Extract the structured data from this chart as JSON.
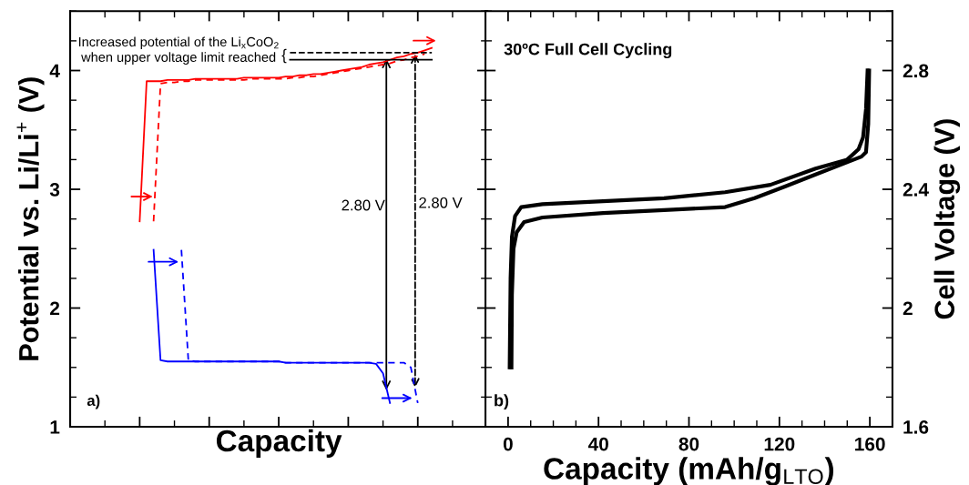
{
  "chart_data": [
    {
      "type": "line",
      "xlabel": "Capacity",
      "ylabel": "Potential vs. Li/Li$^{+}$ (V)",
      "categories": [
        null,
        null,
        null,
        null,
        null,
        null,
        null,
        null,
        null,
        null,
        null,
        null,
        null,
        null,
        null,
        null,
        null,
        null,
        null,
        null,
        null,
        null,
        null,
        null,
        null,
        null,
        null,
        null,
        null,
        null,
        null,
        null,
        null,
        null,
        null,
        null,
        null,
        null,
        null,
        null,
        null,
        null,
        null,
        null,
        null,
        null,
        null,
        null,
        null,
        null,
        null,
        null,
        null,
        null,
        null,
        null,
        null,
        null,
        null,
        null,
        null
      ],
      "ylim": [
        1,
        4.5
      ],
      "tick_labels": "y",
      "grid": false,
      "legend": false,
      "yticks": [
        1,
        {
          "value": 1.25,
          "label": null
        },
        {
          "value": 1.5,
          "label": null
        },
        {
          "value": 1.75,
          "label": null
        },
        2,
        {
          "value": 2.25,
          "label": null
        },
        {
          "value": 2.5,
          "label": null
        },
        {
          "value": 2.75,
          "label": null
        },
        3,
        {
          "value": 3.25,
          "label": null
        },
        {
          "value": 3.5,
          "label": null
        },
        {
          "value": 3.75,
          "label": null
        },
        4,
        {
          "value": 4.25,
          "label": null
        },
        {
          "value": 4.5,
          "label": null
        }
      ],
      "series": [
        {
          "color": "#ff0000",
          "line_style": "solid",
          "values": [
            null,
            null,
            null,
            null,
            null,
            null,
            null,
            null,
            null,
            null,
            2.73,
            3.91,
            3.91,
            3.91,
            3.92,
            3.92,
            3.92,
            3.92,
            3.93,
            3.93,
            3.93,
            3.93,
            3.93,
            3.93,
            3.93,
            3.94,
            3.94,
            3.94,
            3.94,
            3.94,
            3.94,
            3.95,
            3.95,
            3.96,
            3.96,
            3.97,
            3.97,
            3.98,
            3.99,
            4.0,
            4.01,
            4.02,
            4.03,
            4.05,
            4.06,
            4.07,
            4.09,
            4.11,
            4.12,
            4.14,
            4.15,
            4.17,
            4.19,
            null,
            null,
            null,
            null,
            null,
            null,
            null,
            null
          ]
        },
        {
          "color": "#ff0000",
          "line_style": "dashed",
          "values": [
            null,
            null,
            null,
            null,
            null,
            null,
            null,
            null,
            null,
            null,
            null,
            null,
            2.73,
            3.89,
            3.9,
            3.9,
            3.91,
            3.91,
            3.92,
            3.92,
            3.92,
            3.92,
            3.92,
            3.92,
            3.92,
            3.92,
            3.93,
            3.93,
            3.93,
            3.93,
            3.93,
            3.93,
            3.94,
            3.94,
            3.95,
            3.95,
            3.96,
            3.97,
            3.98,
            3.99,
            4.0,
            4.01,
            4.02,
            4.03,
            4.04,
            4.05,
            4.06,
            4.08,
            4.09,
            4.11,
            4.12,
            4.14,
            null,
            null,
            null,
            null,
            null,
            null,
            null,
            null,
            null
          ]
        },
        {
          "color": "#0000ff",
          "line_style": "solid",
          "values": [
            null,
            null,
            null,
            null,
            null,
            null,
            null,
            null,
            null,
            null,
            null,
            null,
            2.49,
            1.56,
            1.55,
            1.55,
            1.55,
            1.55,
            1.55,
            1.55,
            1.55,
            1.55,
            1.55,
            1.55,
            1.55,
            1.55,
            1.55,
            1.55,
            1.55,
            1.55,
            1.55,
            1.54,
            1.54,
            1.54,
            1.54,
            1.54,
            1.54,
            1.54,
            1.54,
            1.54,
            1.54,
            1.54,
            1.54,
            1.54,
            1.53,
            1.45,
            1.2,
            null,
            null,
            null,
            null,
            null,
            null,
            null,
            null,
            null,
            null,
            null,
            null,
            null,
            null
          ]
        },
        {
          "color": "#0000ff",
          "line_style": "dashed",
          "values": [
            null,
            null,
            null,
            null,
            null,
            null,
            null,
            null,
            null,
            null,
            null,
            null,
            null,
            null,
            null,
            null,
            2.49,
            1.56,
            1.55,
            1.55,
            1.55,
            1.55,
            1.55,
            1.55,
            1.55,
            1.55,
            1.55,
            1.55,
            1.55,
            1.55,
            1.55,
            1.54,
            1.54,
            1.54,
            1.54,
            1.54,
            1.54,
            1.54,
            1.54,
            1.54,
            1.54,
            1.54,
            1.54,
            1.54,
            1.54,
            1.54,
            1.54,
            1.54,
            1.54,
            1.5,
            1.2,
            null,
            null,
            null,
            null,
            null,
            null,
            null,
            null,
            null,
            null
          ]
        }
      ],
      "annotations": [
        "Increased potential of the Li$_{x}$CoO$_{2}$\nwhen upper voltage limit reached",
        "{",
        "2.80 V",
        "2.80 V",
        "a)"
      ]
    },
    {
      "type": "line",
      "xlabel": "Capacity (mAh/g$_{LTO}$)",
      "ylabel": "Cell Voltage (V)",
      "xlim": [
        -10,
        170
      ],
      "ylim": [
        1.6,
        3.0
      ],
      "grid": false,
      "legend": false,
      "xticks": [
        {
          "value": -10,
          "label": null
        },
        0,
        {
          "value": 10,
          "label": null
        },
        {
          "value": 20,
          "label": null
        },
        {
          "value": 30,
          "label": null
        },
        40,
        {
          "value": 50,
          "label": null
        },
        {
          "value": 60,
          "label": null
        },
        {
          "value": 70,
          "label": null
        },
        80,
        {
          "value": 90,
          "label": null
        },
        {
          "value": 100,
          "label": null
        },
        {
          "value": 110,
          "label": null
        },
        120,
        {
          "value": 130,
          "label": null
        },
        {
          "value": 140,
          "label": null
        },
        {
          "value": 150,
          "label": null
        },
        160,
        {
          "value": 170,
          "label": null
        }
      ],
      "yticks": [
        1.6,
        {
          "value": 1.7,
          "label": null
        },
        {
          "value": 1.8,
          "label": null
        },
        {
          "value": 1.9,
          "label": null
        },
        2,
        {
          "value": 2.1,
          "label": null
        },
        {
          "value": 2.2,
          "label": null
        },
        {
          "value": 2.3,
          "label": null
        },
        2.4,
        {
          "value": 2.5,
          "label": null
        },
        {
          "value": 2.6,
          "label": null
        },
        {
          "value": 2.7,
          "label": null
        },
        2.8,
        {
          "value": 2.9,
          "label": null
        },
        {
          "value": 3.0,
          "label": null
        }
      ],
      "series": [
        {
          "color": "#000000",
          "line_style": "solid",
          "x": [
            0.7,
            1.1,
            1.7,
            3.1,
            5.8,
            15.2,
            42,
            69,
            96,
            116,
            136,
            150,
            155,
            157,
            158.3,
            159
          ],
          "values": [
            1.8,
            2.1,
            2.24,
            2.31,
            2.34,
            2.35,
            2.36,
            2.37,
            2.39,
            2.415,
            2.47,
            2.5,
            2.535,
            2.575,
            2.67,
            2.8
          ]
        },
        {
          "color": "#000000",
          "line_style": "solid",
          "x": [
            159.7,
            159.3,
            158.3,
            156.3,
            149.6,
            136,
            122.7,
            109,
            96,
            69,
            42,
            15.2,
            7.1,
            3.8,
            2.4,
            1.7,
            1.5
          ],
          "values": [
            2.8,
            2.62,
            2.525,
            2.51,
            2.49,
            2.45,
            2.41,
            2.37,
            2.34,
            2.33,
            2.32,
            2.305,
            2.29,
            2.255,
            2.2,
            2.045,
            1.8
          ]
        }
      ],
      "annotations": [
        "30ºC Full Cell Cycling",
        "b)"
      ]
    }
  ]
}
